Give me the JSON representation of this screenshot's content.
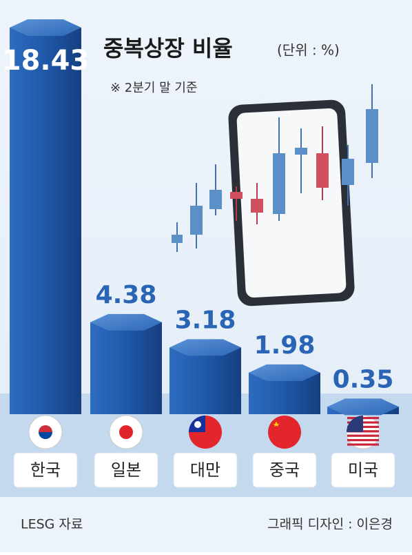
{
  "chart_data": {
    "type": "bar",
    "title": "중복상장 비율",
    "subtitle": "(단위 : %)",
    "note": "※ 2분기 말 기준",
    "categories": [
      "한국",
      "일본",
      "대만",
      "중국",
      "미국"
    ],
    "values": [
      18.43,
      4.38,
      3.18,
      1.98,
      0.35
    ],
    "color": "#2a64b4",
    "source": "LESG 자료",
    "credit": "그래픽 디자인 : 이은경"
  }
}
